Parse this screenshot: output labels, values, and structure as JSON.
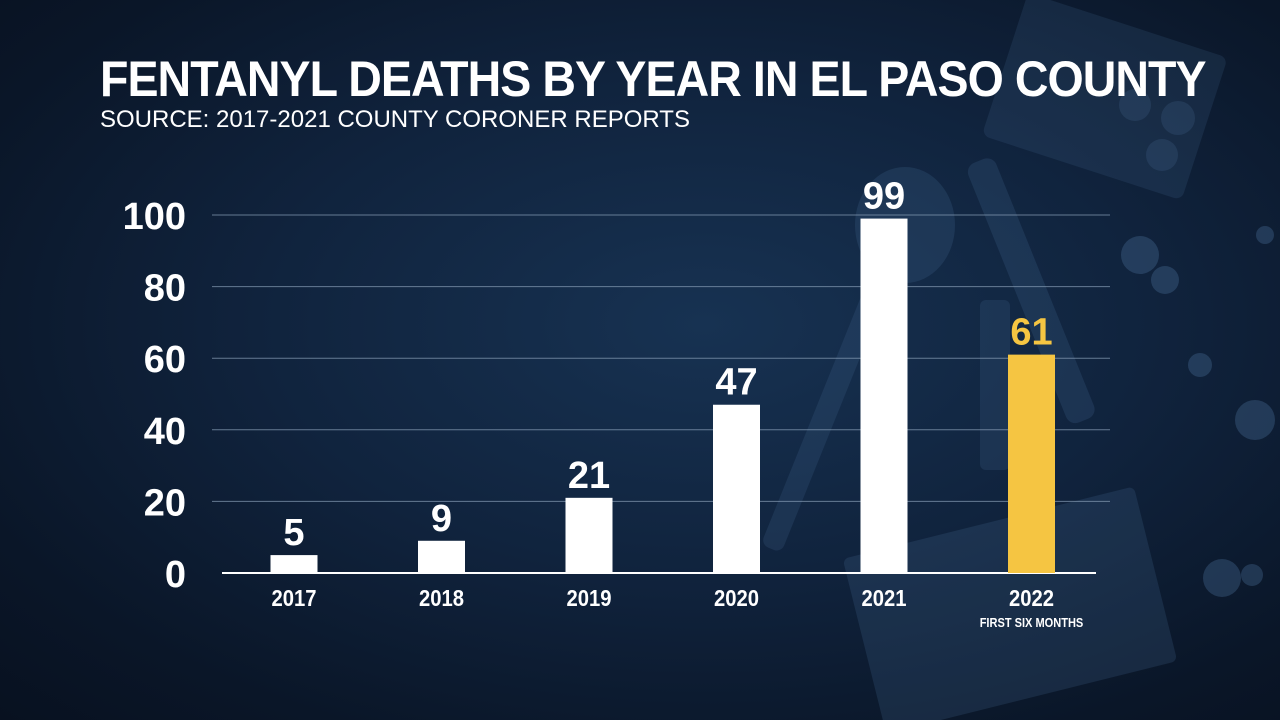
{
  "header": {
    "title": "FENTANYL DEATHS BY YEAR IN EL PASO COUNTY",
    "subtitle": "SOURCE: 2017-2021 COUNTY CORONER REPORTS"
  },
  "colors": {
    "bar_default": "#ffffff",
    "bar_highlight": "#f5c542",
    "label_highlight": "#f5c542",
    "text": "#ffffff",
    "gridline": "#8aa0b8"
  },
  "chart_data": {
    "type": "bar",
    "categories": [
      "2017",
      "2018",
      "2019",
      "2020",
      "2021",
      "2022"
    ],
    "category_notes": [
      "",
      "",
      "",
      "",
      "",
      "FIRST SIX MONTHS"
    ],
    "values": [
      5,
      9,
      21,
      47,
      99,
      61
    ],
    "data_labels": [
      "5",
      "9",
      "21",
      "47",
      "99",
      "61"
    ],
    "highlight_index": 5,
    "ylim": [
      0,
      100
    ],
    "yticks": [
      0,
      20,
      40,
      60,
      80,
      100
    ],
    "ytick_labels": [
      "0",
      "20",
      "40",
      "60",
      "80",
      "100"
    ],
    "grid": true,
    "xlabel": "",
    "ylabel": ""
  }
}
